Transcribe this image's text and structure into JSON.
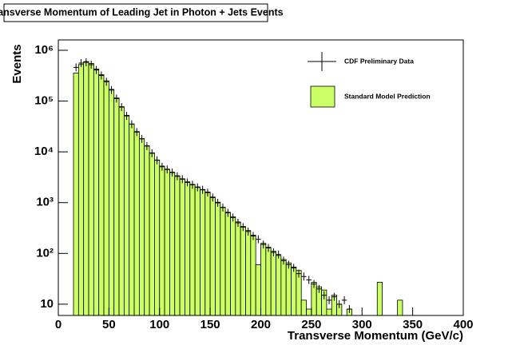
{
  "chart_data": {
    "type": "histogram",
    "title": "Transverse Momentum of Leading Jet in Photon + Jets Events",
    "x_label": "Transverse Momentum (GeV/c)",
    "y_label": "Events",
    "log_y": true,
    "xlim": [
      0,
      400
    ],
    "xticks": [
      0,
      50,
      100,
      150,
      200,
      250,
      300,
      350,
      400
    ],
    "ylim": [
      6,
      1600000
    ],
    "yticks": [
      10,
      {
        "value": 100,
        "label": "10²"
      },
      {
        "value": 1000,
        "label": "10³"
      },
      {
        "value": 10000,
        "label": "10⁴"
      },
      {
        "value": 100000,
        "label": "10⁵"
      },
      {
        "value": 1000000,
        "label": "10⁶"
      }
    ],
    "legend": "upper right",
    "bins": [
      15,
      20,
      25,
      30,
      35,
      40,
      45,
      50,
      55,
      60,
      65,
      70,
      75,
      80,
      85,
      90,
      95,
      100,
      105,
      110,
      115,
      120,
      125,
      130,
      135,
      140,
      145,
      150,
      155,
      160,
      165,
      170,
      175,
      180,
      185,
      190,
      195,
      200,
      205,
      210,
      215,
      220,
      225,
      230,
      235,
      240,
      245,
      250,
      255,
      260,
      265,
      270,
      275,
      280,
      285,
      290,
      295,
      300,
      305,
      310,
      315,
      320,
      325,
      330,
      335,
      340,
      345
    ],
    "series": [
      {
        "name": "Standard Model Prediction",
        "color": "#ccff66",
        "values": [
          355000,
          525000,
          600000,
          550000,
          427000,
          331000,
          251000,
          170000,
          115000,
          77600,
          52500,
          35500,
          25100,
          18200,
          13200,
          9550,
          6920,
          5250,
          4570,
          3980,
          3390,
          2950,
          2570,
          2290,
          2040,
          1820,
          1620,
          1290,
          1020,
          813,
          646,
          525,
          417,
          339,
          282,
          229,
          60,
          158,
          132,
          110,
          91,
          76,
          65,
          54,
          46,
          12,
          8,
          27,
          22,
          19,
          8,
          15,
          10,
          5,
          8,
          0,
          0,
          0,
          0,
          0,
          27,
          0,
          0,
          0,
          12,
          0
        ]
      },
      {
        "name": "CDF Preliminary Data",
        "color": "#000000",
        "values": [
          460000,
          560000,
          580000,
          520000,
          410000,
          320000,
          240000,
          165000,
          112000,
          76000,
          51000,
          35000,
          24500,
          18000,
          13000,
          9400,
          6800,
          5100,
          4500,
          3900,
          3300,
          2900,
          2500,
          2250,
          2000,
          1780,
          1580,
          1260,
          990,
          800,
          630,
          510,
          400,
          330,
          270,
          220,
          190,
          150,
          128,
          105,
          95,
          72,
          60,
          52,
          40,
          35,
          30,
          25,
          20,
          15,
          12,
          14,
          10,
          12,
          8,
          null,
          null,
          null,
          null,
          null,
          null,
          null,
          null,
          null,
          null,
          null
        ]
      }
    ]
  }
}
